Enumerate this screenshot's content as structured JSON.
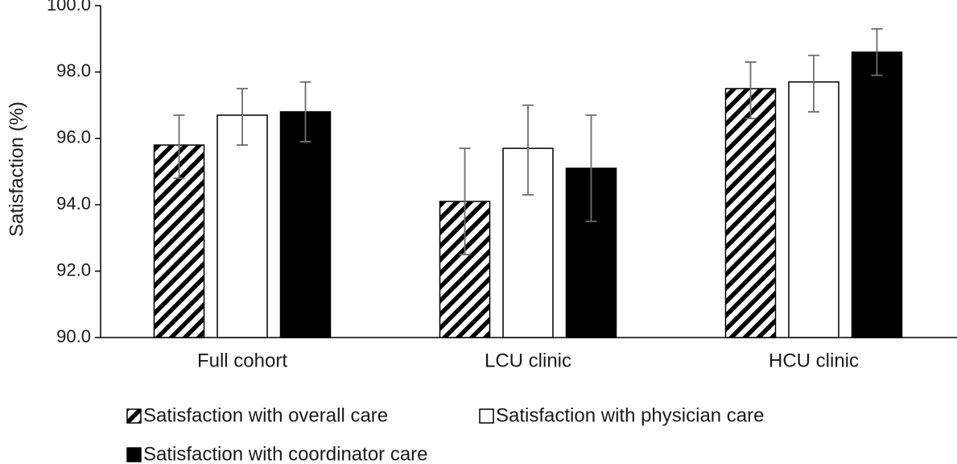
{
  "chart_data": {
    "type": "bar",
    "ylabel": "Satisfaction (%)",
    "xlabel": "",
    "ylim": [
      90,
      100
    ],
    "y_ticks": [
      "90.0",
      "92.0",
      "94.0",
      "96.0",
      "98.0",
      "100.0"
    ],
    "y_tick_values": [
      90,
      92,
      94,
      96,
      98,
      100
    ],
    "categories": [
      "Full cohort",
      "LCU clinic",
      "HCU clinic"
    ],
    "series": [
      {
        "name": "Satisfaction with overall care",
        "fill": "hatched",
        "values": [
          95.8,
          94.1,
          97.5
        ],
        "error_low": [
          94.8,
          92.5,
          96.6
        ],
        "error_high": [
          96.7,
          95.7,
          98.3
        ]
      },
      {
        "name": "Satisfaction with physician care",
        "fill": "white",
        "values": [
          96.7,
          95.7,
          97.7
        ],
        "error_low": [
          95.8,
          94.3,
          96.8
        ],
        "error_high": [
          97.5,
          97.0,
          98.5
        ]
      },
      {
        "name": "Satisfaction with coordinator care",
        "fill": "black",
        "values": [
          96.8,
          95.1,
          98.6
        ],
        "error_low": [
          95.9,
          93.5,
          97.9
        ],
        "error_high": [
          97.7,
          96.7,
          99.3
        ]
      }
    ],
    "grid": false,
    "legend_position": "bottom",
    "colors": {
      "bar_stroke": "#000000",
      "black_fill": "#000000",
      "white_fill": "#ffffff",
      "error_bar": "#6e6e6e",
      "axis": "#000000"
    }
  }
}
